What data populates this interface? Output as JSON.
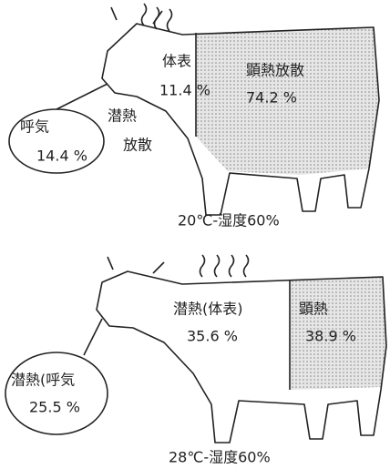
{
  "panels": [
    {
      "labels": {
        "surface_name": "体表",
        "surface_value": "11.4 %",
        "sensible_name": "顕熱放散",
        "sensible_value": "74.2 %",
        "breath_name": "呼気",
        "breath_value": "14.4 %",
        "latent_name_1": "潜熱",
        "latent_name_2": "放散"
      },
      "caption": "20℃-湿度60%"
    },
    {
      "labels": {
        "surface_name": "潜熱(体表)",
        "surface_value": "35.6 %",
        "sensible_name": "顕熱",
        "sensible_value": "38.9 %",
        "breath_name": "潜熱(呼気",
        "breath_value": "25.5 %"
      },
      "caption": "28℃-湿度60%"
    }
  ]
}
